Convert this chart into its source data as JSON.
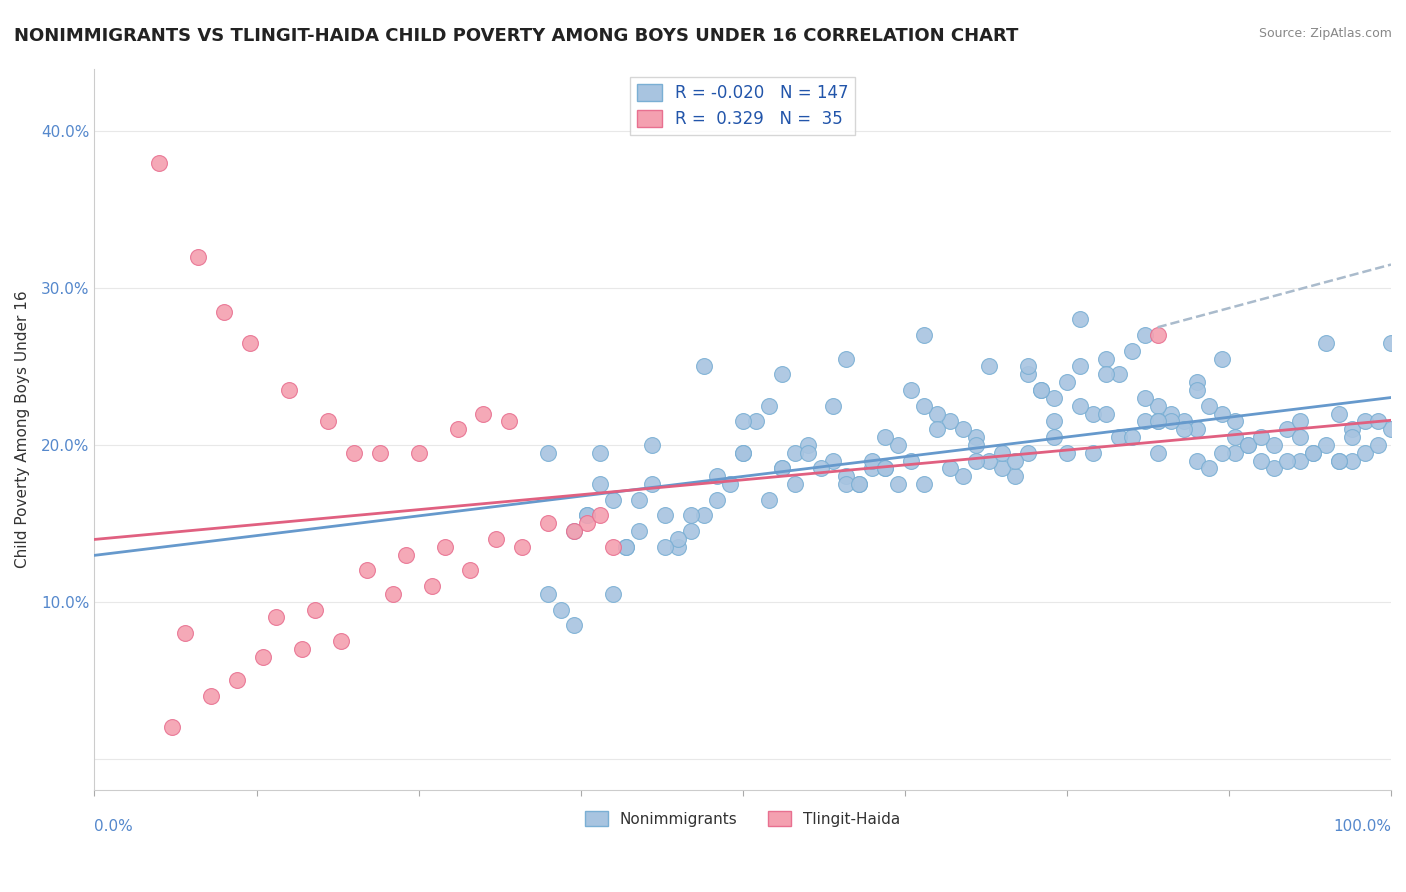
{
  "title": "NONIMMIGRANTS VS TLINGIT-HAIDA CHILD POVERTY AMONG BOYS UNDER 16 CORRELATION CHART",
  "source": "Source: ZipAtlas.com",
  "ylabel": "Child Poverty Among Boys Under 16",
  "yticks": [
    0.0,
    0.1,
    0.2,
    0.3,
    0.4
  ],
  "ytick_labels": [
    "",
    "10.0%",
    "20.0%",
    "30.0%",
    "40.0%"
  ],
  "xlim": [
    0.0,
    1.0
  ],
  "ylim": [
    -0.02,
    0.44
  ],
  "blue_R": -0.02,
  "blue_N": 147,
  "pink_R": 0.329,
  "pink_N": 35,
  "blue_color": "#a8c4e0",
  "pink_color": "#f4a0b0",
  "blue_edge": "#7aafd4",
  "pink_edge": "#e87090",
  "trend_blue": "#6699cc",
  "trend_pink": "#e06080",
  "trend_dashed": "#aabbcc",
  "background": "#ffffff",
  "grid_color": "#e8e8e8",
  "blue_scatter_x": [
    0.82,
    0.85,
    0.88,
    0.92,
    0.95,
    0.96,
    0.97,
    0.98,
    0.99,
    1.0,
    0.97,
    0.96,
    0.94,
    0.93,
    0.91,
    0.9,
    0.89,
    0.88,
    0.87,
    0.86,
    0.85,
    0.84,
    0.83,
    0.82,
    0.81,
    0.8,
    0.79,
    0.78,
    0.77,
    0.76,
    0.75,
    0.74,
    0.73,
    0.72,
    0.71,
    0.7,
    0.69,
    0.68,
    0.67,
    0.66,
    0.65,
    0.64,
    0.63,
    0.62,
    0.61,
    0.6,
    0.59,
    0.58,
    0.57,
    0.55,
    0.54,
    0.53,
    0.52,
    0.51,
    0.5,
    0.49,
    0.48,
    0.47,
    0.46,
    0.45,
    0.44,
    0.43,
    0.42,
    0.41,
    0.4,
    0.39,
    0.38,
    0.37,
    0.36,
    0.35,
    0.72,
    0.68,
    0.65,
    0.78,
    0.82,
    0.74,
    0.85,
    0.6,
    0.55,
    0.48,
    0.42,
    0.38,
    0.93,
    0.91,
    0.88,
    0.86,
    0.84,
    0.81,
    0.79,
    0.76,
    0.73,
    0.7,
    0.67,
    0.64,
    0.61,
    0.58,
    0.53,
    0.5,
    0.96,
    0.94,
    0.89,
    0.83,
    0.77,
    0.71,
    0.62,
    0.56,
    0.45,
    0.4,
    0.97,
    0.92,
    0.87,
    0.8,
    0.74,
    0.66,
    0.59,
    0.52,
    0.44,
    0.37,
    0.98,
    0.9,
    0.82,
    0.75,
    0.68,
    0.61,
    0.54,
    0.46,
    0.41,
    0.99,
    0.93,
    0.85,
    0.78,
    0.72,
    0.63,
    0.57,
    0.5,
    0.43,
    0.35,
    1.0,
    0.95,
    0.87,
    0.81,
    0.76,
    0.69,
    0.64,
    0.58,
    0.53,
    0.47,
    0.39
  ],
  "blue_scatter_y": [
    0.195,
    0.19,
    0.205,
    0.21,
    0.2,
    0.22,
    0.19,
    0.195,
    0.2,
    0.21,
    0.21,
    0.19,
    0.195,
    0.205,
    0.185,
    0.19,
    0.2,
    0.215,
    0.22,
    0.225,
    0.21,
    0.215,
    0.22,
    0.225,
    0.23,
    0.26,
    0.245,
    0.255,
    0.22,
    0.25,
    0.24,
    0.23,
    0.235,
    0.245,
    0.18,
    0.185,
    0.19,
    0.205,
    0.21,
    0.215,
    0.22,
    0.225,
    0.19,
    0.2,
    0.205,
    0.185,
    0.175,
    0.18,
    0.19,
    0.2,
    0.195,
    0.185,
    0.225,
    0.215,
    0.195,
    0.175,
    0.165,
    0.155,
    0.145,
    0.135,
    0.155,
    0.175,
    0.145,
    0.135,
    0.165,
    0.175,
    0.155,
    0.145,
    0.095,
    0.105,
    0.195,
    0.2,
    0.21,
    0.22,
    0.215,
    0.205,
    0.24,
    0.19,
    0.195,
    0.18,
    0.165,
    0.155,
    0.19,
    0.2,
    0.195,
    0.185,
    0.21,
    0.215,
    0.205,
    0.225,
    0.235,
    0.195,
    0.18,
    0.175,
    0.185,
    0.175,
    0.185,
    0.195,
    0.19,
    0.195,
    0.2,
    0.215,
    0.195,
    0.19,
    0.175,
    0.185,
    0.14,
    0.105,
    0.205,
    0.19,
    0.195,
    0.205,
    0.215,
    0.185,
    0.175,
    0.165,
    0.135,
    0.085,
    0.215,
    0.205,
    0.215,
    0.195,
    0.19,
    0.185,
    0.175,
    0.155,
    0.135,
    0.215,
    0.215,
    0.235,
    0.245,
    0.25,
    0.235,
    0.225,
    0.215,
    0.2,
    0.195,
    0.265,
    0.265,
    0.255,
    0.27,
    0.28,
    0.25,
    0.27,
    0.255,
    0.245,
    0.25,
    0.195
  ],
  "pink_scatter_x": [
    0.05,
    0.08,
    0.1,
    0.12,
    0.15,
    0.18,
    0.2,
    0.22,
    0.25,
    0.28,
    0.3,
    0.32,
    0.38,
    0.4,
    0.82,
    0.06,
    0.09,
    0.11,
    0.14,
    0.17,
    0.21,
    0.24,
    0.27,
    0.31,
    0.35,
    0.39,
    0.07,
    0.13,
    0.16,
    0.19,
    0.23,
    0.26,
    0.29,
    0.33,
    0.37
  ],
  "pink_scatter_y": [
    0.38,
    0.32,
    0.285,
    0.265,
    0.235,
    0.215,
    0.195,
    0.195,
    0.195,
    0.21,
    0.22,
    0.215,
    0.15,
    0.135,
    0.27,
    0.02,
    0.04,
    0.05,
    0.09,
    0.095,
    0.12,
    0.13,
    0.135,
    0.14,
    0.15,
    0.155,
    0.08,
    0.065,
    0.07,
    0.075,
    0.105,
    0.11,
    0.12,
    0.135,
    0.145
  ]
}
